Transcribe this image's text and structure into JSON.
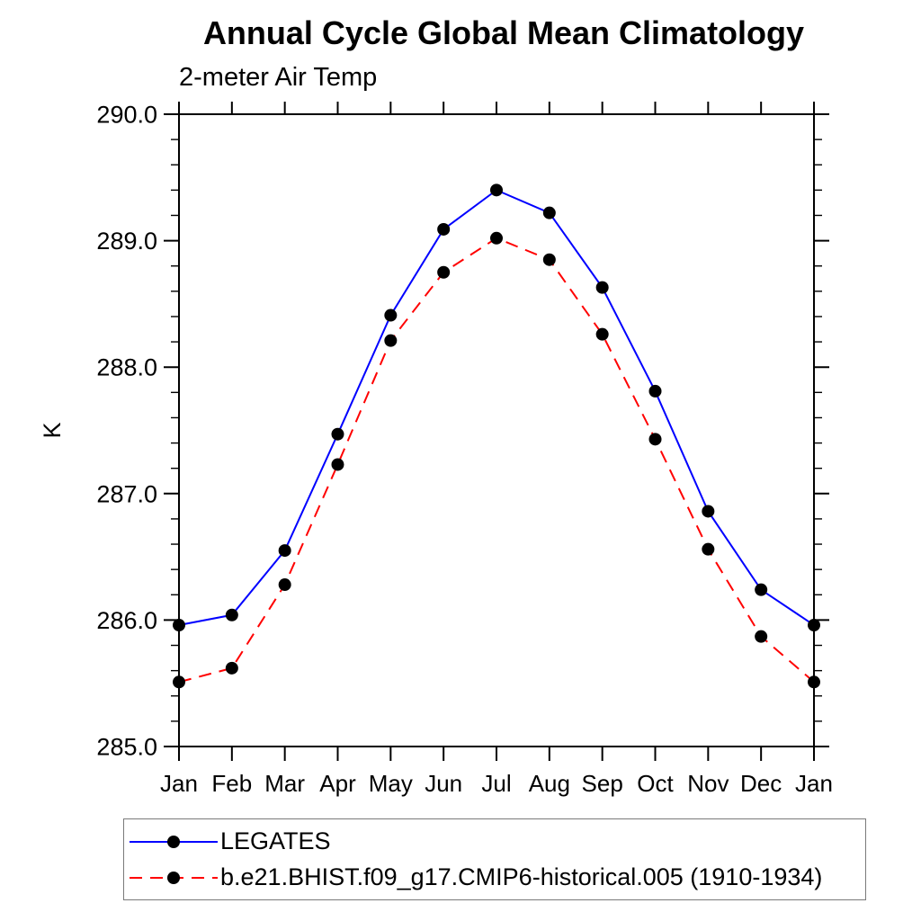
{
  "chart_data": {
    "type": "line",
    "title": "Annual Cycle Global Mean Climatology",
    "subtitle": "2-meter Air Temp",
    "ylabel": "K",
    "xlabel": "",
    "x_categories": [
      "Jan",
      "Feb",
      "Mar",
      "Apr",
      "May",
      "Jun",
      "Jul",
      "Aug",
      "Sep",
      "Oct",
      "Nov",
      "Dec",
      "Jan"
    ],
    "ylim": [
      285.0,
      290.0
    ],
    "y_major_step": 1.0,
    "y_minor_step": 0.2,
    "y_tick_labels": [
      "285.0",
      "286.0",
      "287.0",
      "288.0",
      "289.0",
      "290.0"
    ],
    "grid": "off",
    "legend_position": "bottom-left boxed",
    "series": [
      {
        "name": "LEGATES",
        "color": "#0000ff",
        "line_style": "solid",
        "marker": "filled-circle",
        "marker_color": "#000000",
        "values": [
          285.96,
          286.04,
          286.55,
          287.47,
          288.41,
          289.09,
          289.4,
          289.22,
          288.63,
          287.81,
          286.86,
          286.24,
          285.96
        ]
      },
      {
        "name": "b.e21.BHIST.f09_g17.CMIP6-historical.005 (1910-1934)",
        "color": "#ff0000",
        "line_style": "dashed",
        "marker": "filled-circle",
        "marker_color": "#000000",
        "values": [
          285.51,
          285.62,
          286.28,
          287.23,
          288.21,
          288.75,
          289.02,
          288.85,
          288.26,
          287.43,
          286.56,
          285.87,
          285.51
        ]
      }
    ]
  },
  "colors": {
    "axis": "#000000",
    "text": "#000000",
    "legend_border": "#7a7a7a",
    "background": "#ffffff"
  }
}
